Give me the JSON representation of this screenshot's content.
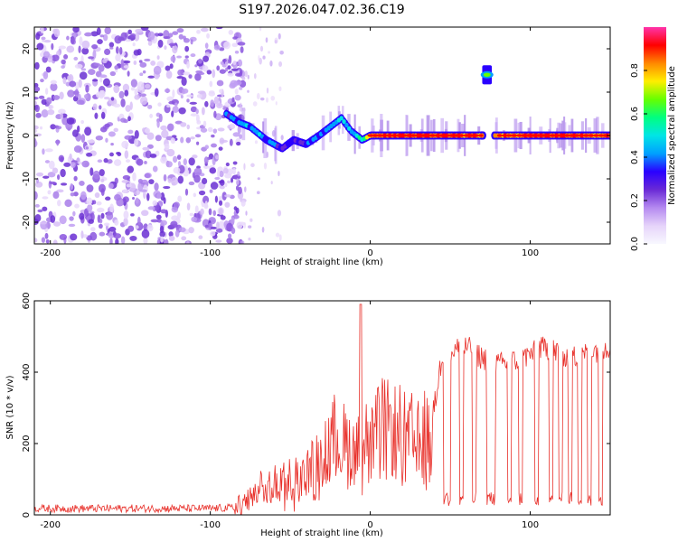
{
  "title": "S197.2026.047.02.36.C19",
  "colors": {
    "snr_line": "#e8302a",
    "background": "#ffffff",
    "noise_colors": [
      "#e9d9fb",
      "#d8bff7",
      "#c09df2",
      "#a77be9",
      "#8a55de",
      "#6a2fd2"
    ],
    "colormap": [
      "#f8f8ff",
      "#e6d4fa",
      "#b58af0",
      "#6a2ad6",
      "#2a00ff",
      "#00a0ff",
      "#00e5e5",
      "#00ff80",
      "#66ff00",
      "#ffee00",
      "#ff8800",
      "#ff0000",
      "#ff33aa"
    ]
  },
  "chart_data": [
    {
      "type": "heatmap",
      "name": "spectrogram",
      "xlabel": "Height of straight line (km)",
      "ylabel": "Frequency (Hz)",
      "xlim": [
        -210,
        150
      ],
      "ylim": [
        -25,
        25
      ],
      "xticks": [
        -200,
        -100,
        0,
        100
      ],
      "xtick_labels": [
        "-200",
        "-100",
        "0",
        "100"
      ],
      "yticks": [
        20,
        10,
        0,
        -10,
        -20
      ],
      "ytick_labels": [
        "20",
        "10",
        "0",
        "-10",
        "-20"
      ],
      "noise_region": [
        -210,
        -85
      ],
      "track": {
        "x": [
          -90,
          -82,
          -75,
          -65,
          -55,
          -48,
          -40,
          -32,
          -25,
          -18,
          -12,
          -5,
          0,
          10,
          30,
          50,
          70,
          75,
          80,
          100,
          120,
          150
        ],
        "y": [
          5,
          3,
          2,
          -1,
          -3,
          -1,
          -2,
          0,
          2,
          4,
          1,
          -1,
          0,
          0,
          0,
          0,
          0,
          0,
          0,
          0,
          0,
          0
        ],
        "amplitude": [
          0.35,
          0.45,
          0.45,
          0.4,
          0.35,
          0.3,
          0.35,
          0.4,
          0.5,
          0.5,
          0.45,
          0.55,
          0.85,
          0.9,
          0.9,
          0.9,
          0.85,
          0.85,
          0.85,
          0.9,
          0.9,
          0.85
        ]
      },
      "track_gap": [
        71,
        77
      ],
      "blob": {
        "x": 73,
        "y": 14,
        "amplitude": 0.45
      },
      "colorbar": {
        "label": "Normalized spectral amplitude",
        "range": [
          0,
          1
        ],
        "ticks": [
          0.0,
          0.2,
          0.4,
          0.6,
          0.8
        ],
        "tick_labels": [
          "0.0",
          "0.2",
          "0.4",
          "0.6",
          "0.8"
        ]
      }
    },
    {
      "type": "line",
      "name": "snr",
      "xlabel": "Height of straight line (km)",
      "ylabel": "SNR (10 * v/v)",
      "xlim": [
        -210,
        150
      ],
      "ylim": [
        0,
        600
      ],
      "xticks": [
        -200,
        -100,
        0,
        100
      ],
      "xtick_labels": [
        "-200",
        "-100",
        "0",
        "100"
      ],
      "yticks": [
        0,
        200,
        400,
        600
      ],
      "ytick_labels": [
        "0",
        "200",
        "400",
        "600"
      ],
      "envelope": {
        "x": [
          -210,
          -100,
          -85,
          -75,
          -65,
          -55,
          -45,
          -35,
          -28,
          -20,
          -12,
          -5,
          0,
          10,
          20,
          30,
          40,
          45,
          50,
          60,
          70,
          80,
          90,
          100,
          110,
          120,
          130,
          140,
          150
        ],
        "y": [
          18,
          18,
          20,
          60,
          100,
          120,
          140,
          180,
          240,
          300,
          260,
          270,
          280,
          340,
          300,
          280,
          300,
          450,
          460,
          470,
          440,
          420,
          430,
          450,
          470,
          450,
          440,
          460,
          470
        ]
      },
      "spike": {
        "x": -6,
        "y": 590
      },
      "dropouts": [
        [
          46,
          50
        ],
        [
          56,
          58
        ],
        [
          64,
          66
        ],
        [
          73,
          78
        ],
        [
          86,
          88
        ],
        [
          93,
          95
        ],
        [
          103,
          105
        ],
        [
          112,
          114
        ],
        [
          118,
          120
        ],
        [
          124,
          126
        ],
        [
          130,
          132
        ],
        [
          136,
          138
        ],
        [
          143,
          145
        ]
      ],
      "dropout_level": 45
    }
  ]
}
